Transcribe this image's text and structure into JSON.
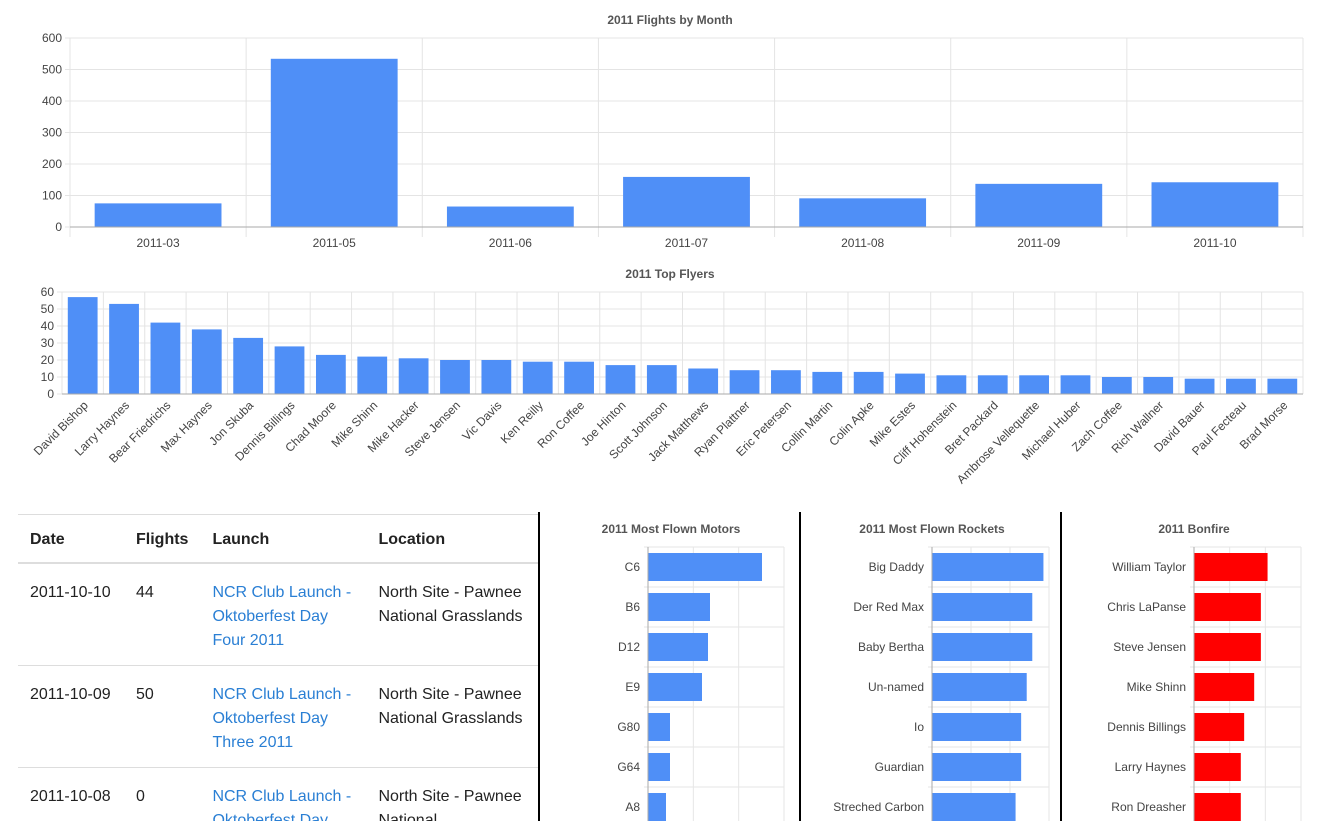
{
  "chart_data": [
    {
      "type": "bar",
      "title": "2011 Flights by Month",
      "categories": [
        "2011-03",
        "2011-05",
        "2011-06",
        "2011-07",
        "2011-08",
        "2011-09",
        "2011-10"
      ],
      "values": [
        75,
        534,
        65,
        159,
        91,
        137,
        142
      ],
      "ylim": [
        0,
        600
      ],
      "yticks": [
        0,
        100,
        200,
        300,
        400,
        500,
        600
      ],
      "xlabel": "",
      "ylabel": "",
      "color": "#4f8ff7"
    },
    {
      "type": "bar",
      "title": "2011 Top Flyers",
      "categories": [
        "David Bishop",
        "Larry Haynes",
        "Bear Friedrichs",
        "Max Haynes",
        "Jon Skuba",
        "Dennis Billings",
        "Chad Moore",
        "Mike Shinn",
        "Mike Hacker",
        "Steve Jensen",
        "Vic Davis",
        "Ken Reilly",
        "Ron Coffee",
        "Joe Hinton",
        "Scott Johnson",
        "Jack Matthews",
        "Ryan Plattner",
        "Eric Petersen",
        "Collin Martin",
        "Colin Apke",
        "Mike Estes",
        "Cliff Hohenstein",
        "Bret Packard",
        "Ambrose Vellequette",
        "Michael Huber",
        "Zach Coffee",
        "Rich Wallner",
        "David Bauer",
        "Paul Fecteau",
        "Brad Morse"
      ],
      "values": [
        57,
        53,
        42,
        38,
        33,
        28,
        23,
        22,
        21,
        20,
        20,
        19,
        19,
        17,
        17,
        15,
        14,
        14,
        13,
        13,
        12,
        11,
        11,
        11,
        11,
        10,
        10,
        9,
        9,
        9
      ],
      "ylim": [
        0,
        60
      ],
      "yticks": [
        0,
        10,
        20,
        30,
        40,
        50,
        60
      ],
      "color": "#4f8ff7"
    },
    {
      "type": "bar",
      "orientation": "horizontal",
      "title": "2011 Most Flown Motors",
      "categories": [
        "C6",
        "B6",
        "D12",
        "E9",
        "G80",
        "G64",
        "A8"
      ],
      "values": [
        57,
        31,
        30,
        27,
        11,
        11,
        9
      ],
      "xlim": [
        0,
        68
      ],
      "color": "#4f8ff7"
    },
    {
      "type": "bar",
      "orientation": "horizontal",
      "title": "2011 Most Flown Rockets",
      "categories": [
        "Big Daddy",
        "Der Red Max",
        "Baby Bertha",
        "Un-named",
        "Io",
        "Guardian",
        "Streched Carbon"
      ],
      "values": [
        10,
        9,
        9,
        8.5,
        8,
        8,
        7.5
      ],
      "xlim": [
        0,
        10.5
      ],
      "color": "#4f8ff7"
    },
    {
      "type": "bar",
      "orientation": "horizontal",
      "title": "2011 Bonfire",
      "categories": [
        "William Taylor",
        "Chris LaPanse",
        "Steve Jensen",
        "Mike Shinn",
        "Dennis Billings",
        "Larry Haynes",
        "Ron Dreasher"
      ],
      "values": [
        11,
        10,
        10,
        9,
        7.5,
        7,
        7
      ],
      "xlim": [
        0,
        16
      ],
      "color": "#ff0000"
    }
  ],
  "table": {
    "headers": [
      "Date",
      "Flights",
      "Launch",
      "Location"
    ],
    "rows": [
      {
        "date": "2011-10-10",
        "flights": "44",
        "launch": "NCR Club Launch - Oktoberfest Day Four 2011",
        "location": "North Site - Pawnee National Grasslands"
      },
      {
        "date": "2011-10-09",
        "flights": "50",
        "launch": "NCR Club Launch - Oktoberfest Day Three 2011",
        "location": "North Site - Pawnee National Grasslands"
      },
      {
        "date": "2011-10-08",
        "flights": "0",
        "launch": "NCR Club Launch - Oktoberfest Day",
        "location": "North Site - Pawnee National"
      }
    ]
  }
}
